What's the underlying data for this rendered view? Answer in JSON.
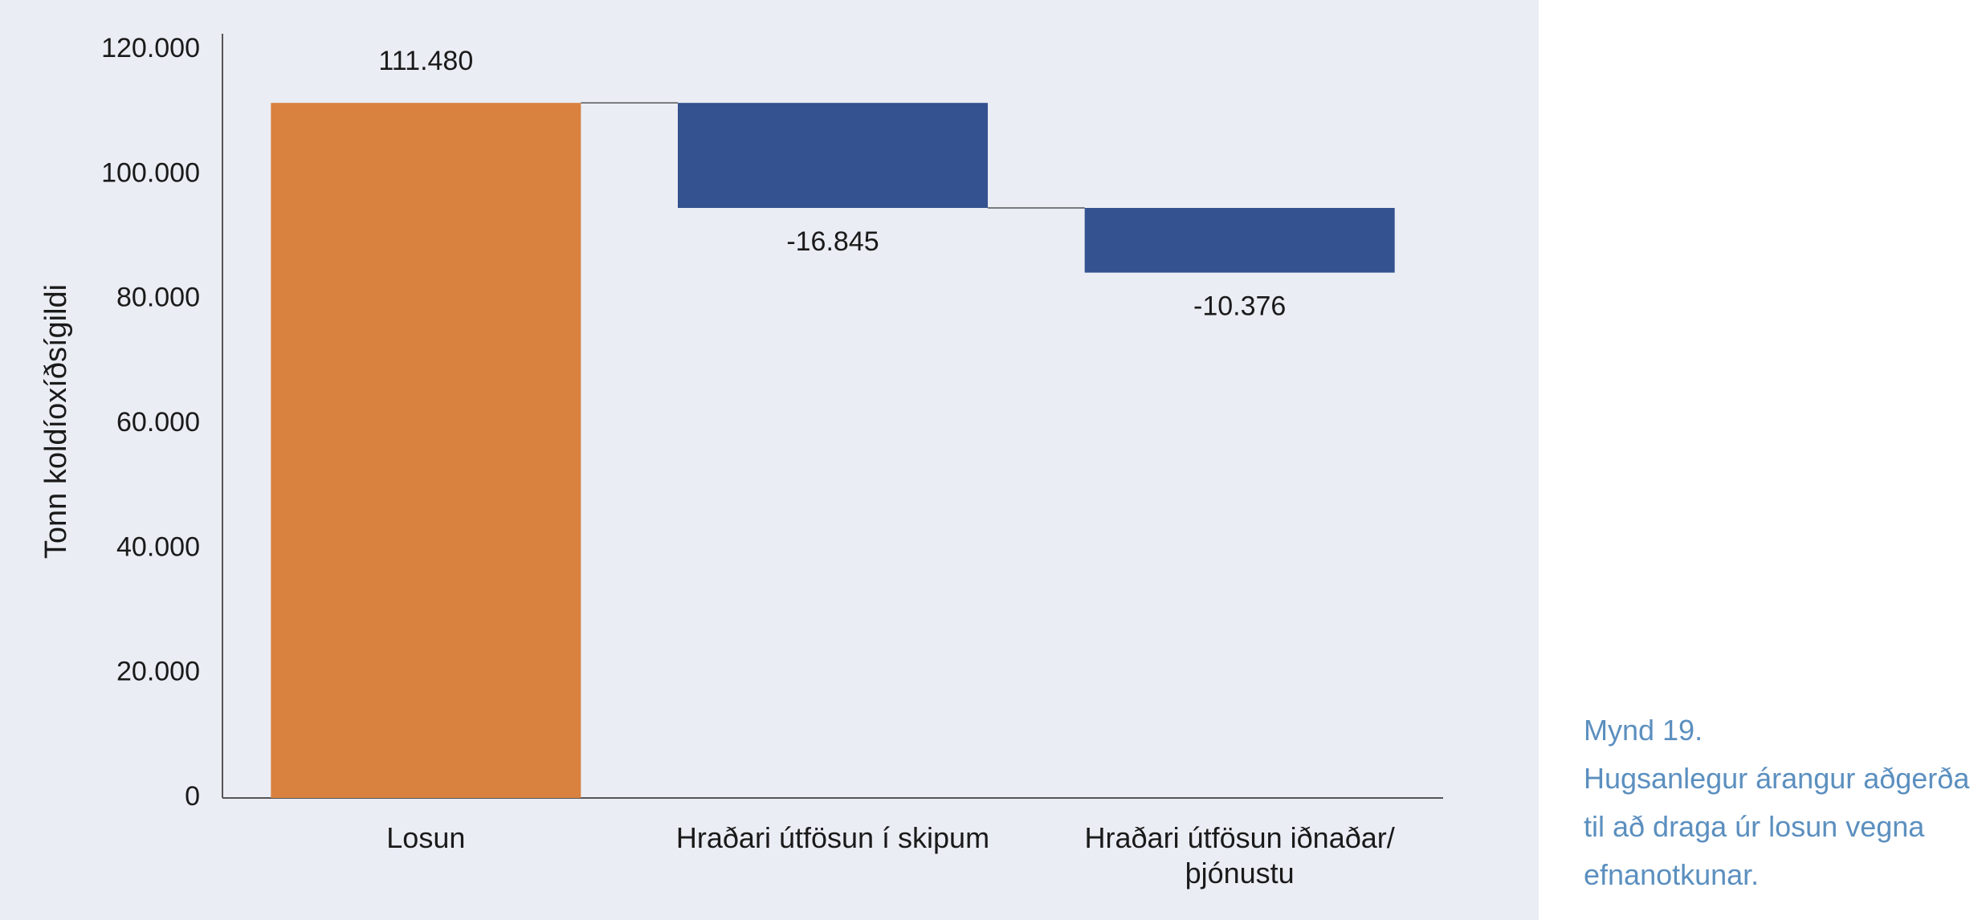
{
  "chart_data": {
    "type": "waterfall",
    "y_label": "Tonn koldíoxíðsígildi",
    "categories": [
      "Losun",
      "Hraðari útfösun í skipum",
      "Hraðari útfösun iðnaðar/þjónustu"
    ],
    "values": [
      111480,
      -16845,
      -10376
    ],
    "value_labels": [
      "111.480",
      "-16.845",
      "-10.376"
    ],
    "colors": [
      "#d9813f",
      "#34528f",
      "#34528f"
    ],
    "ylim": [
      0,
      120000
    ],
    "yticks": [
      0,
      {
        "value": 20000,
        "label": "20.000"
      },
      {
        "value": 40000,
        "label": "40.000"
      },
      {
        "value": 60000,
        "label": "60.000"
      },
      {
        "value": 80000,
        "label": "80.000"
      },
      {
        "value": 100000,
        "label": "100.000"
      },
      {
        "value": 120000,
        "label": "120.000"
      }
    ],
    "grid": false
  },
  "caption": {
    "figure": "Mynd 19.",
    "lines": [
      "Hugsanlegur árangur aðgerða",
      "til að draga úr losun vegna",
      "efnanotkunar."
    ]
  }
}
